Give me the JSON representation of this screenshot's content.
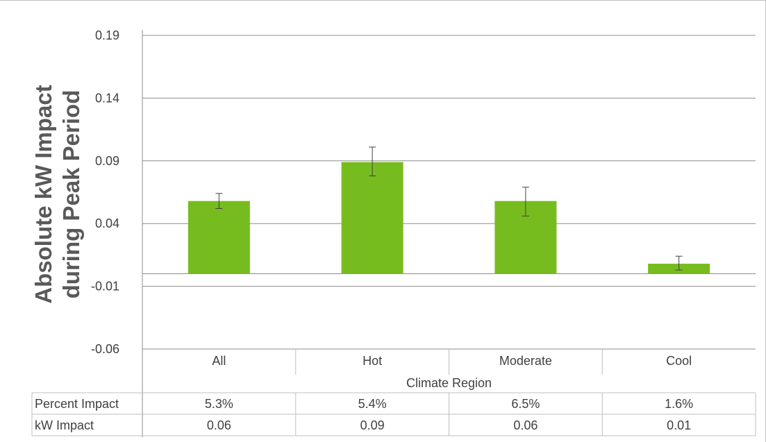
{
  "chart_data": {
    "type": "bar",
    "title": "",
    "ylabel": "Absolute kW Impact during Peak Period",
    "xlabel": "Climate Region",
    "ylim": [
      -0.06,
      0.19
    ],
    "yticks": [
      "0.19",
      "0.14",
      "0.09",
      "0.04",
      "-0.01",
      "-0.06"
    ],
    "ytick_values": [
      0.19,
      0.14,
      0.09,
      0.04,
      -0.01,
      -0.06
    ],
    "grid": true,
    "categories": [
      "All",
      "Hot",
      "Moderate",
      "Cool"
    ],
    "values": [
      0.058,
      0.089,
      0.058,
      0.008
    ],
    "error_low": [
      0.052,
      0.078,
      0.046,
      0.003
    ],
    "error_high": [
      0.064,
      0.101,
      0.069,
      0.014
    ],
    "bar_color": "#77bc1f",
    "table": {
      "rows": [
        {
          "label": "Percent Impact",
          "values": [
            "5.3%",
            "5.4%",
            "6.5%",
            "1.6%"
          ]
        },
        {
          "label": "kW Impact",
          "values": [
            "0.06",
            "0.09",
            "0.06",
            "0.01"
          ]
        }
      ]
    }
  }
}
